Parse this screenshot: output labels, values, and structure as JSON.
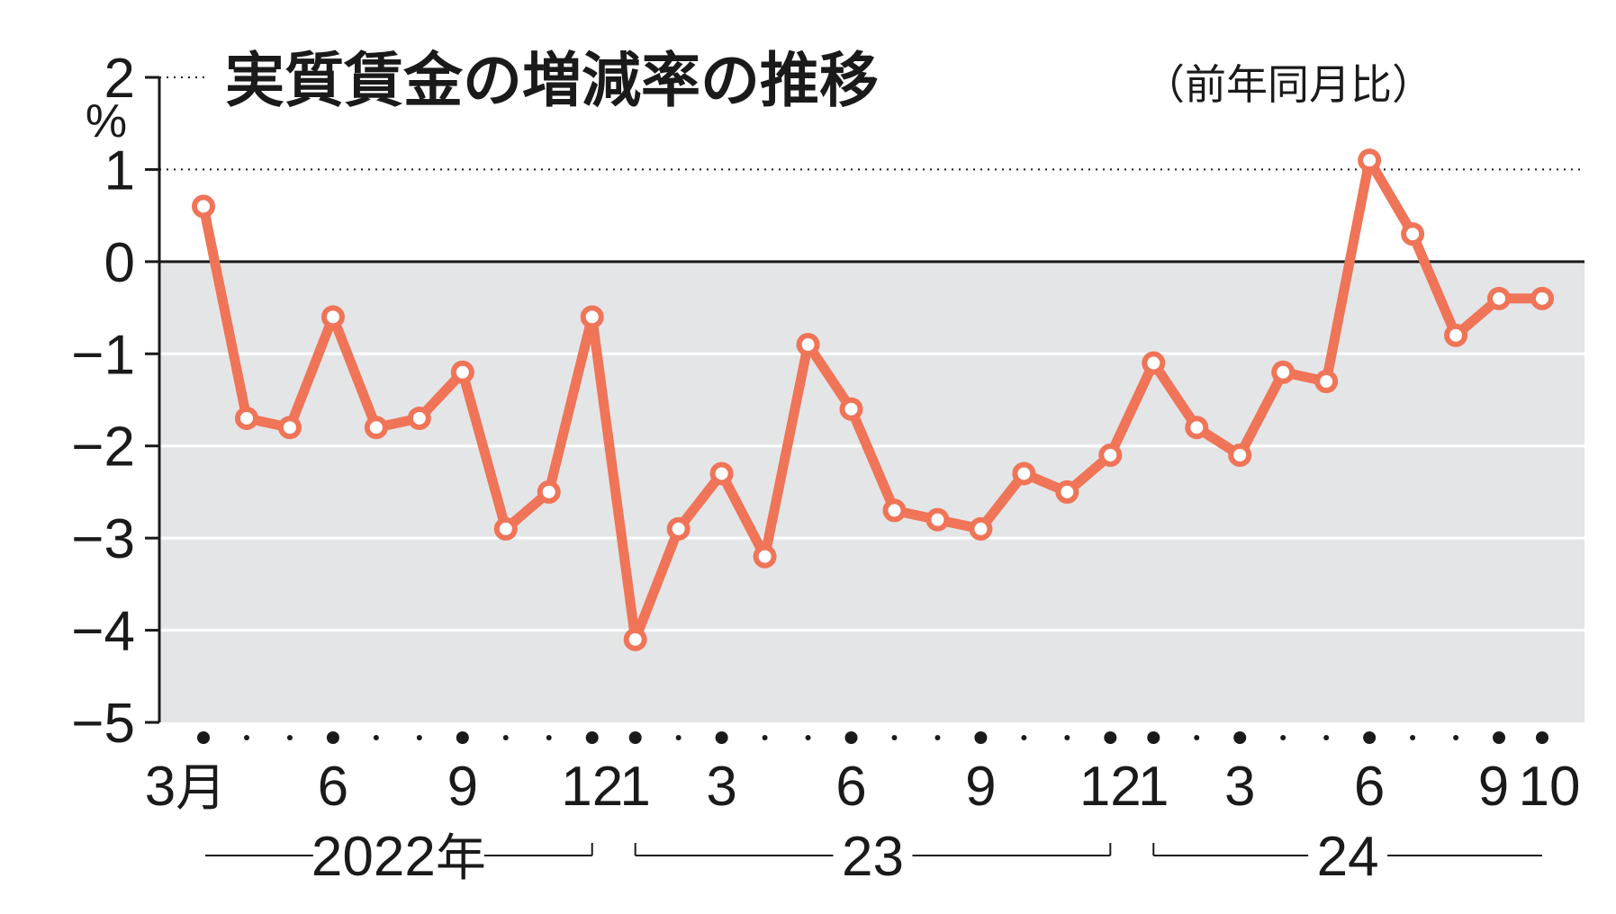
{
  "chart_data": {
    "type": "line",
    "title": "実質賃金の増減率の推移",
    "subtitle": "（前年同月比）",
    "yunit": "%",
    "ylim": [
      -5,
      2
    ],
    "yticks": [
      "2",
      "1",
      "0",
      "−1",
      "−2",
      "−3",
      "−4",
      "−5"
    ],
    "yticks_values": [
      2,
      1,
      0,
      -1,
      -2,
      -3,
      -4,
      -5
    ],
    "negative_region_shaded": true,
    "dotted_reference_lines": [
      1,
      2
    ],
    "line_color": "#f07457",
    "shade_color": "#e4e5e7",
    "x": [
      "2022-03",
      "2022-04",
      "2022-05",
      "2022-06",
      "2022-07",
      "2022-08",
      "2022-09",
      "2022-10",
      "2022-11",
      "2022-12",
      "2023-01",
      "2023-02",
      "2023-03",
      "2023-04",
      "2023-05",
      "2023-06",
      "2023-07",
      "2023-08",
      "2023-09",
      "2023-10",
      "2023-11",
      "2023-12",
      "2024-01",
      "2024-02",
      "2024-03",
      "2024-04",
      "2024-05",
      "2024-06",
      "2024-07",
      "2024-08",
      "2024-09",
      "2024-10"
    ],
    "series": [
      {
        "values": [
          0.6,
          -1.7,
          -1.8,
          -0.6,
          -1.8,
          -1.7,
          -1.2,
          -2.9,
          -2.5,
          -0.6,
          -4.1,
          -2.9,
          -2.3,
          -3.2,
          -0.9,
          -1.6,
          -2.7,
          -2.8,
          -2.9,
          -2.3,
          -2.5,
          -2.1,
          -1.1,
          -1.8,
          -2.1,
          -1.2,
          -1.3,
          1.1,
          0.3,
          -0.8,
          -0.4,
          -0.4
        ]
      }
    ],
    "x_tick_labels": [
      {
        "index": 0,
        "text": "3",
        "suffix": "月"
      },
      {
        "index": 3,
        "text": "6"
      },
      {
        "index": 6,
        "text": "9"
      },
      {
        "index": 9,
        "text": "12"
      },
      {
        "index": 10,
        "text": "1"
      },
      {
        "index": 12,
        "text": "3"
      },
      {
        "index": 15,
        "text": "6"
      },
      {
        "index": 18,
        "text": "9"
      },
      {
        "index": 21,
        "text": "12"
      },
      {
        "index": 22,
        "text": "1"
      },
      {
        "index": 24,
        "text": "3"
      },
      {
        "index": 27,
        "text": "6"
      },
      {
        "index": 30,
        "text": "9"
      },
      {
        "index": 31,
        "text": "10"
      }
    ],
    "year_groups": [
      {
        "label": "2022",
        "suffix": "年",
        "start": 0,
        "end": 9
      },
      {
        "label": "23",
        "start": 10,
        "end": 21
      },
      {
        "label": "24",
        "start": 22,
        "end": 31
      }
    ]
  }
}
